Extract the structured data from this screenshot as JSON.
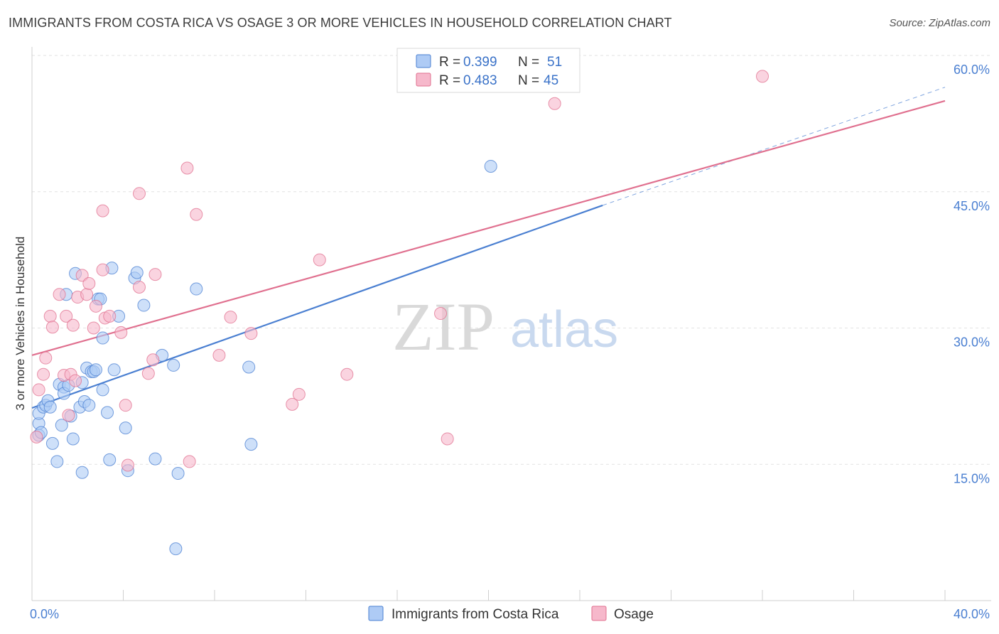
{
  "title": "IMMIGRANTS FROM COSTA RICA VS OSAGE 3 OR MORE VEHICLES IN HOUSEHOLD CORRELATION CHART",
  "source": "Source: ZipAtlas.com",
  "watermark": {
    "zip": "ZIP",
    "atlas": "atlas"
  },
  "colors": {
    "blue": "#4a7fd1",
    "blue_fill": "#aecbf5",
    "pink": "#e0708f",
    "pink_fill": "#f6b8cb",
    "grid": "#e2e2e2"
  },
  "chart_data": {
    "type": "scatter",
    "title": "IMMIGRANTS FROM COSTA RICA VS OSAGE 3 OR MORE VEHICLES IN HOUSEHOLD CORRELATION CHART",
    "xlabel": "",
    "ylabel": "3 or more Vehicles in Household",
    "xlim": [
      0,
      40
    ],
    "ylim": [
      0,
      60
    ],
    "x_tick_labels": [
      "0.0%",
      "40.0%"
    ],
    "y_ticks": [
      15,
      30,
      45,
      60
    ],
    "y_tick_labels": [
      "15.0%",
      "30.0%",
      "45.0%",
      "60.0%"
    ],
    "legend": [
      {
        "name": "Immigrants from Costa Rica",
        "r_label": "R =",
        "r": "0.399",
        "n_label": "N =",
        "n": "51"
      },
      {
        "name": "Osage",
        "r_label": "R =",
        "r": "0.483",
        "n_label": "N =",
        "n": "45"
      }
    ],
    "series": [
      {
        "name": "Immigrants from Costa Rica",
        "color": "#4a7fd1",
        "trend": {
          "x0": 0,
          "y0": 21.2,
          "x1": 25,
          "y1": 43.5,
          "dash_to_x": 40,
          "dash_to_y": 56.5
        },
        "points": [
          [
            0.3,
            18.2
          ],
          [
            0.3,
            19.5
          ],
          [
            0.3,
            20.6
          ],
          [
            0.5,
            21.3
          ],
          [
            0.6,
            21.5
          ],
          [
            0.7,
            22.0
          ],
          [
            0.8,
            21.3
          ],
          [
            0.9,
            17.3
          ],
          [
            1.1,
            15.3
          ],
          [
            1.2,
            23.8
          ],
          [
            1.3,
            19.3
          ],
          [
            1.4,
            23.5
          ],
          [
            1.4,
            22.8
          ],
          [
            1.5,
            33.7
          ],
          [
            1.6,
            23.7
          ],
          [
            1.7,
            20.3
          ],
          [
            1.8,
            17.8
          ],
          [
            2.1,
            21.3
          ],
          [
            2.2,
            24.0
          ],
          [
            2.2,
            14.1
          ],
          [
            2.3,
            21.9
          ],
          [
            2.4,
            25.6
          ],
          [
            2.5,
            21.5
          ],
          [
            2.6,
            25.2
          ],
          [
            2.7,
            25.2
          ],
          [
            2.8,
            25.4
          ],
          [
            2.9,
            33.2
          ],
          [
            3.1,
            28.9
          ],
          [
            3.1,
            23.2
          ],
          [
            3.3,
            20.7
          ],
          [
            3.4,
            15.5
          ],
          [
            3.5,
            36.6
          ],
          [
            3.6,
            25.4
          ],
          [
            3.8,
            31.3
          ],
          [
            4.1,
            19.0
          ],
          [
            4.2,
            14.3
          ],
          [
            4.5,
            35.5
          ],
          [
            4.6,
            36.1
          ],
          [
            4.9,
            32.5
          ],
          [
            5.4,
            15.6
          ],
          [
            5.7,
            27.0
          ],
          [
            6.2,
            25.9
          ],
          [
            6.4,
            14.0
          ],
          [
            6.3,
            5.7
          ],
          [
            7.2,
            34.3
          ],
          [
            9.5,
            25.7
          ],
          [
            9.6,
            17.2
          ],
          [
            20.1,
            47.8
          ],
          [
            1.9,
            36.0
          ],
          [
            3.0,
            33.2
          ],
          [
            0.4,
            18.5
          ]
        ]
      },
      {
        "name": "Osage",
        "color": "#e0708f",
        "trend": {
          "x0": 0,
          "y0": 27.0,
          "x1": 40,
          "y1": 55.0
        },
        "points": [
          [
            0.2,
            18.0
          ],
          [
            0.3,
            23.2
          ],
          [
            0.5,
            24.9
          ],
          [
            0.6,
            26.7
          ],
          [
            0.8,
            31.3
          ],
          [
            0.9,
            30.1
          ],
          [
            1.2,
            33.7
          ],
          [
            1.4,
            24.8
          ],
          [
            1.5,
            31.3
          ],
          [
            1.6,
            20.4
          ],
          [
            1.7,
            24.9
          ],
          [
            1.8,
            30.3
          ],
          [
            1.9,
            24.2
          ],
          [
            2.0,
            33.4
          ],
          [
            2.2,
            35.8
          ],
          [
            2.4,
            33.7
          ],
          [
            2.5,
            34.9
          ],
          [
            2.7,
            30.0
          ],
          [
            2.8,
            32.4
          ],
          [
            3.1,
            36.4
          ],
          [
            3.1,
            42.9
          ],
          [
            3.2,
            31.1
          ],
          [
            3.4,
            31.3
          ],
          [
            3.9,
            29.5
          ],
          [
            4.1,
            21.5
          ],
          [
            4.2,
            14.9
          ],
          [
            4.7,
            44.8
          ],
          [
            4.7,
            34.5
          ],
          [
            5.1,
            25.0
          ],
          [
            5.3,
            26.5
          ],
          [
            5.4,
            35.9
          ],
          [
            6.8,
            47.6
          ],
          [
            6.9,
            15.3
          ],
          [
            7.2,
            42.5
          ],
          [
            8.2,
            27.0
          ],
          [
            8.7,
            31.2
          ],
          [
            9.6,
            29.4
          ],
          [
            11.4,
            21.6
          ],
          [
            11.7,
            22.7
          ],
          [
            12.6,
            37.5
          ],
          [
            13.8,
            24.9
          ],
          [
            17.9,
            31.6
          ],
          [
            18.2,
            17.8
          ],
          [
            22.9,
            54.7
          ],
          [
            32.0,
            57.7
          ]
        ]
      }
    ]
  }
}
